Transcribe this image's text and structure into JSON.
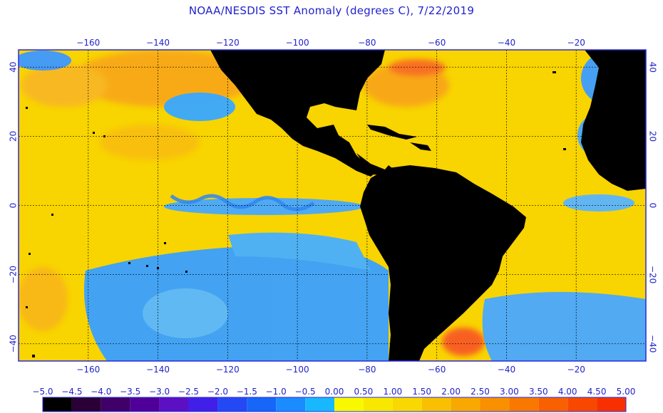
{
  "title": "NOAA/NESDIS SST Anomaly (degrees C), 7/22/2019",
  "map": {
    "lon_range": [
      -180,
      0
    ],
    "lat_range": [
      -45,
      45
    ],
    "lon_ticks": [
      -160,
      -140,
      -120,
      -100,
      -80,
      -60,
      -40,
      -20
    ],
    "lat_ticks": [
      40,
      20,
      0,
      -20,
      -40
    ],
    "grid": true,
    "land_color": "#000000",
    "border_color": "#2b2bd8"
  },
  "colorbar": {
    "labels": [
      "-5.0",
      "-4.5",
      "-4.0",
      "-3.5",
      "-3.0",
      "-2.5",
      "-2.0",
      "-1.5",
      "-1.0",
      "-0.5",
      "0.00",
      "0.50",
      "1.00",
      "1.50",
      "2.00",
      "2.50",
      "3.00",
      "3.50",
      "4.00",
      "4.50",
      "5.00"
    ],
    "colors": [
      "#000000",
      "#2a0036",
      "#3f0068",
      "#500098",
      "#5c10c4",
      "#4020e8",
      "#2448f4",
      "#1666f8",
      "#1a8cff",
      "#18b8ff",
      "#f8f800",
      "#f8e800",
      "#f8d800",
      "#f8c000",
      "#f8a800",
      "#f89000",
      "#f87800",
      "#f86000",
      "#f84800",
      "#f83000"
    ]
  }
}
